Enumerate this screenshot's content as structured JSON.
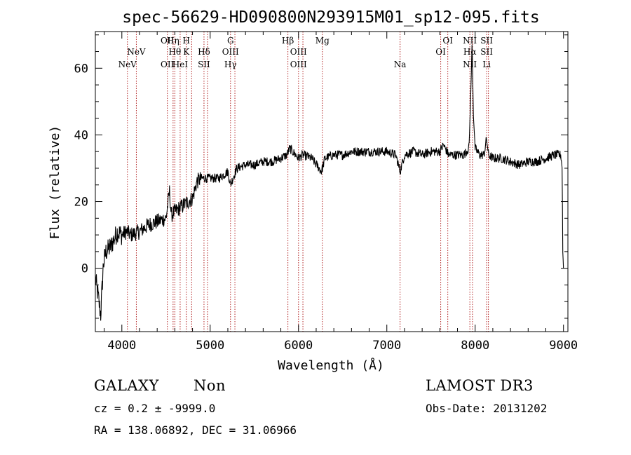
{
  "chart_data": {
    "type": "line",
    "title": "spec-56629-HD090800N293915M01_sp12-095.fits",
    "xlabel": "Wavelength (Å)",
    "ylabel": "Flux (relative)",
    "xlim": [
      3700,
      9050
    ],
    "ylim": [
      -19,
      71
    ],
    "xticks": [
      4000,
      5000,
      6000,
      7000,
      8000,
      9000
    ],
    "yticks": [
      0,
      20,
      40,
      60
    ],
    "series": [
      {
        "name": "spectrum",
        "anchors": [
          [
            3700,
            -3
          ],
          [
            3730,
            -8
          ],
          [
            3760,
            -14
          ],
          [
            3790,
            1
          ],
          [
            3820,
            5
          ],
          [
            3860,
            6
          ],
          [
            3900,
            8
          ],
          [
            3950,
            11
          ],
          [
            4000,
            10
          ],
          [
            4050,
            11
          ],
          [
            4100,
            10
          ],
          [
            4200,
            11
          ],
          [
            4300,
            13
          ],
          [
            4400,
            14
          ],
          [
            4500,
            15
          ],
          [
            4540,
            23
          ],
          [
            4560,
            16
          ],
          [
            4600,
            17
          ],
          [
            4700,
            19
          ],
          [
            4800,
            21
          ],
          [
            4850,
            26
          ],
          [
            4900,
            27
          ],
          [
            5000,
            27
          ],
          [
            5100,
            27
          ],
          [
            5200,
            29
          ],
          [
            5230,
            25
          ],
          [
            5300,
            30
          ],
          [
            5400,
            31
          ],
          [
            5500,
            31
          ],
          [
            5600,
            32
          ],
          [
            5700,
            32
          ],
          [
            5800,
            33
          ],
          [
            5870,
            34
          ],
          [
            5900,
            36
          ],
          [
            6000,
            33
          ],
          [
            6050,
            34
          ],
          [
            6150,
            33
          ],
          [
            6260,
            29
          ],
          [
            6300,
            33
          ],
          [
            6400,
            34
          ],
          [
            6500,
            34
          ],
          [
            6600,
            35
          ],
          [
            6700,
            35
          ],
          [
            6800,
            35
          ],
          [
            6900,
            35
          ],
          [
            7000,
            35
          ],
          [
            7100,
            34
          ],
          [
            7150,
            29
          ],
          [
            7200,
            34
          ],
          [
            7300,
            35
          ],
          [
            7400,
            34
          ],
          [
            7500,
            35
          ],
          [
            7600,
            35
          ],
          [
            7640,
            37
          ],
          [
            7700,
            34
          ],
          [
            7800,
            34
          ],
          [
            7870,
            34
          ],
          [
            7930,
            36
          ],
          [
            7950,
            52
          ],
          [
            7965,
            68
          ],
          [
            7980,
            46
          ],
          [
            8000,
            36
          ],
          [
            8050,
            34
          ],
          [
            8100,
            34
          ],
          [
            8130,
            39
          ],
          [
            8150,
            34
          ],
          [
            8200,
            33
          ],
          [
            8300,
            33
          ],
          [
            8400,
            32
          ],
          [
            8500,
            31
          ],
          [
            8600,
            32
          ],
          [
            8700,
            32
          ],
          [
            8800,
            33
          ],
          [
            8900,
            34
          ],
          [
            8970,
            34
          ],
          [
            8985,
            30
          ],
          [
            8992,
            5
          ],
          [
            9000,
            0
          ]
        ]
      }
    ],
    "lines": [
      {
        "wl": 4063,
        "labels": [
          {
            "text": "NeV",
            "row": 2
          }
        ]
      },
      {
        "wl": 4164,
        "labels": [
          {
            "text": "NeV",
            "row": 1
          }
        ]
      },
      {
        "wl": 4515,
        "labels": [
          {
            "text": "OII",
            "row": 0
          },
          {
            "text": "OII",
            "row": 2
          }
        ]
      },
      {
        "wl": 4580,
        "labels": [
          {
            "text": "Hη",
            "row": 0
          }
        ]
      },
      {
        "wl": 4600,
        "labels": [
          {
            "text": "Hθ",
            "row": 1
          }
        ]
      },
      {
        "wl": 4660,
        "labels": [
          {
            "text": "HeI",
            "row": 2
          }
        ]
      },
      {
        "wl": 4730,
        "labels": [
          {
            "text": "H",
            "row": 0
          },
          {
            "text": "K",
            "row": 1
          }
        ]
      },
      {
        "wl": 4790,
        "labels": [
          {
            "text": "",
            "row": 0
          }
        ]
      },
      {
        "wl": 4930,
        "labels": [
          {
            "text": "Hδ",
            "row": 1
          },
          {
            "text": "SII",
            "row": 2
          }
        ]
      },
      {
        "wl": 4970,
        "labels": [
          {
            "text": "",
            "row": 0
          }
        ]
      },
      {
        "wl": 5230,
        "labels": [
          {
            "text": "G",
            "row": 0
          },
          {
            "text": "OIII",
            "row": 1
          },
          {
            "text": "Hγ",
            "row": 2
          }
        ]
      },
      {
        "wl": 5280,
        "labels": [
          {
            "text": "",
            "row": 0
          }
        ]
      },
      {
        "wl": 5880,
        "labels": [
          {
            "text": "Hβ",
            "row": 0
          }
        ]
      },
      {
        "wl": 6000,
        "labels": [
          {
            "text": "OIII",
            "row": 1
          },
          {
            "text": "OIII",
            "row": 2
          }
        ]
      },
      {
        "wl": 6050,
        "labels": [
          {
            "text": "",
            "row": 0
          }
        ]
      },
      {
        "wl": 6270,
        "labels": [
          {
            "text": "Mg",
            "row": 0
          }
        ]
      },
      {
        "wl": 7150,
        "labels": [
          {
            "text": "Na",
            "row": 2
          }
        ]
      },
      {
        "wl": 7610,
        "labels": [
          {
            "text": "OI",
            "row": 1
          }
        ]
      },
      {
        "wl": 7690,
        "labels": [
          {
            "text": "OI",
            "row": 0
          }
        ]
      },
      {
        "wl": 7940,
        "labels": [
          {
            "text": "NII",
            "row": 0
          },
          {
            "text": "Hα",
            "row": 1
          },
          {
            "text": "NII",
            "row": 2
          }
        ]
      },
      {
        "wl": 7970,
        "labels": [
          {
            "text": "",
            "row": 0
          }
        ]
      },
      {
        "wl": 8130,
        "labels": [
          {
            "text": "SII",
            "row": 0
          },
          {
            "text": "SII",
            "row": 1
          },
          {
            "text": "Li",
            "row": 2
          }
        ]
      },
      {
        "wl": 8150,
        "labels": [
          {
            "text": "",
            "row": 0
          }
        ]
      }
    ]
  },
  "info": {
    "class": "GALAXY",
    "subclass": "Non",
    "cz": "cz = 0.2 ± -9999.0",
    "coords": "RA = 138.06892, DEC =  31.06966",
    "survey": "LAMOST DR3",
    "obsdate": "Obs-Date: 20131202"
  },
  "colors": {
    "line": "#000000",
    "marker": "#b22222"
  }
}
